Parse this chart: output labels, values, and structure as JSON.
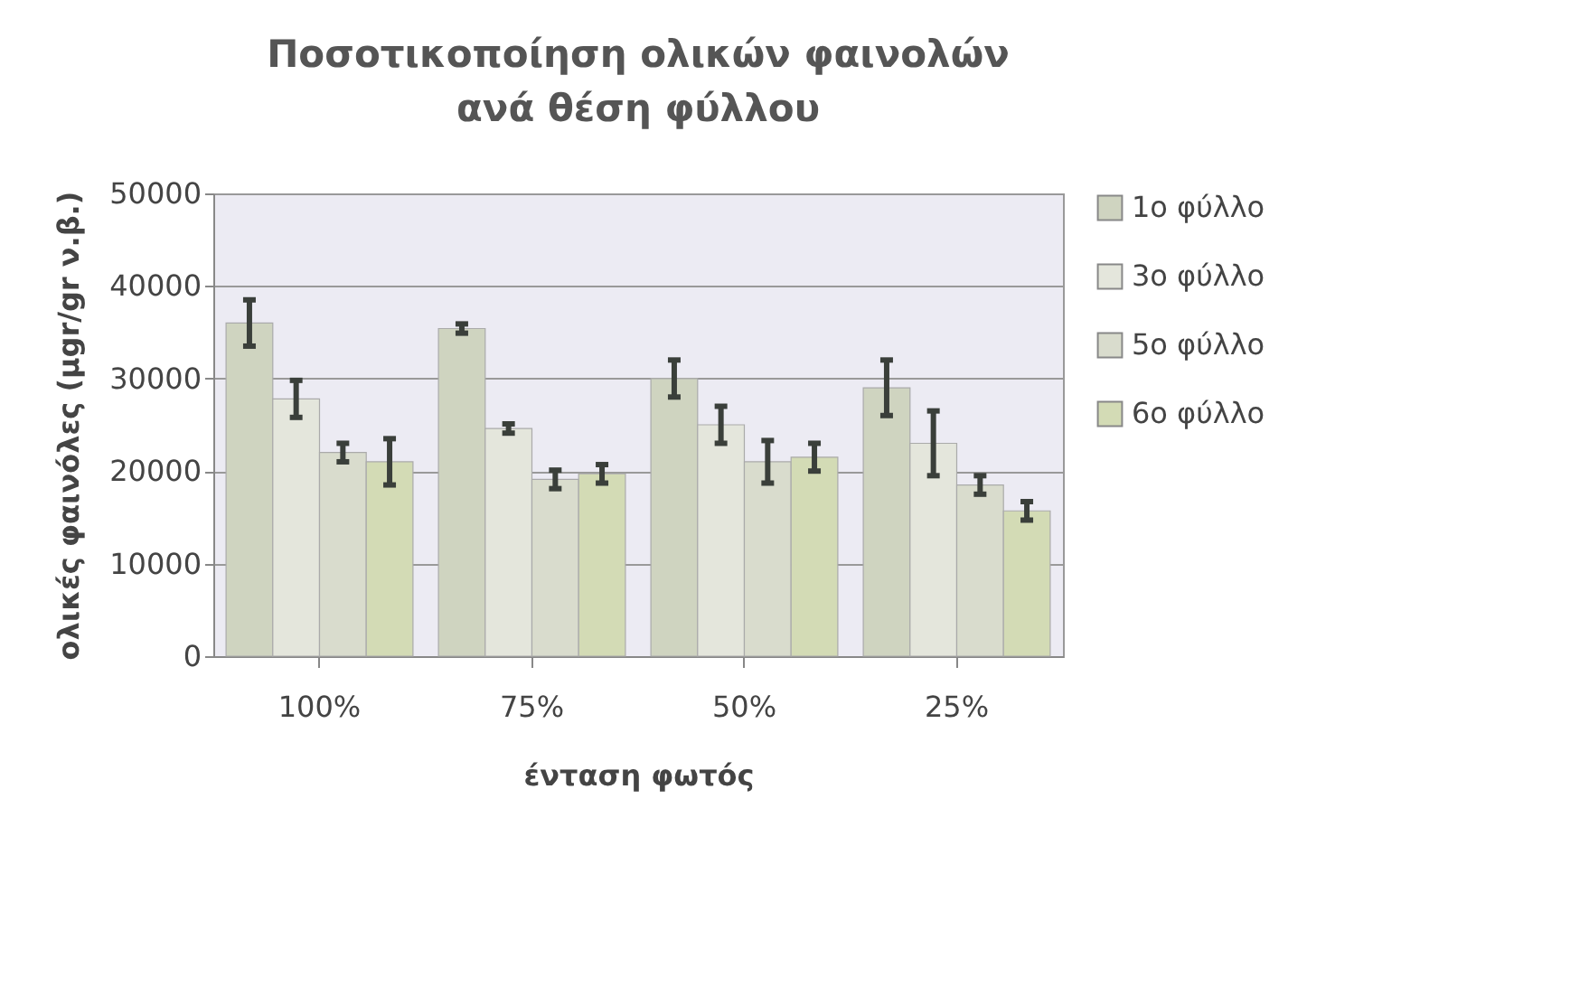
{
  "chart_data": {
    "type": "bar",
    "title": "Ποσοτικοποίηση ολικών φαινολών ανά θέση φύλλου",
    "xlabel": "ένταση φωτός",
    "ylabel": "ολικές φαινόλες (μgr/gr ν.β.)",
    "categories": [
      "100%",
      "75%",
      "50%",
      "25%"
    ],
    "series": [
      {
        "name": "1ο φύλλο",
        "color": "#cfd4c0",
        "values": [
          36000,
          35400,
          30000,
          29000
        ],
        "errors": [
          2500,
          500,
          2000,
          3000
        ]
      },
      {
        "name": "3ο φύλλο",
        "color": "#e4e6dc",
        "values": [
          27800,
          24600,
          25000,
          23000
        ],
        "errors": [
          2000,
          500,
          2000,
          3500
        ]
      },
      {
        "name": "5ο φύλλο",
        "color": "#d9dccd",
        "values": [
          22000,
          19100,
          21000,
          18500
        ],
        "errors": [
          1000,
          1000,
          2300,
          1000
        ]
      },
      {
        "name": "6ο φύλλο",
        "color": "#d3dbb5",
        "values": [
          21000,
          19700,
          21500,
          15700
        ],
        "errors": [
          2500,
          1000,
          1500,
          1000
        ]
      }
    ],
    "ylim": [
      0,
      50000
    ],
    "yticks": [
      0,
      10000,
      20000,
      30000,
      40000,
      50000
    ],
    "grid": "y",
    "legend": "right"
  }
}
